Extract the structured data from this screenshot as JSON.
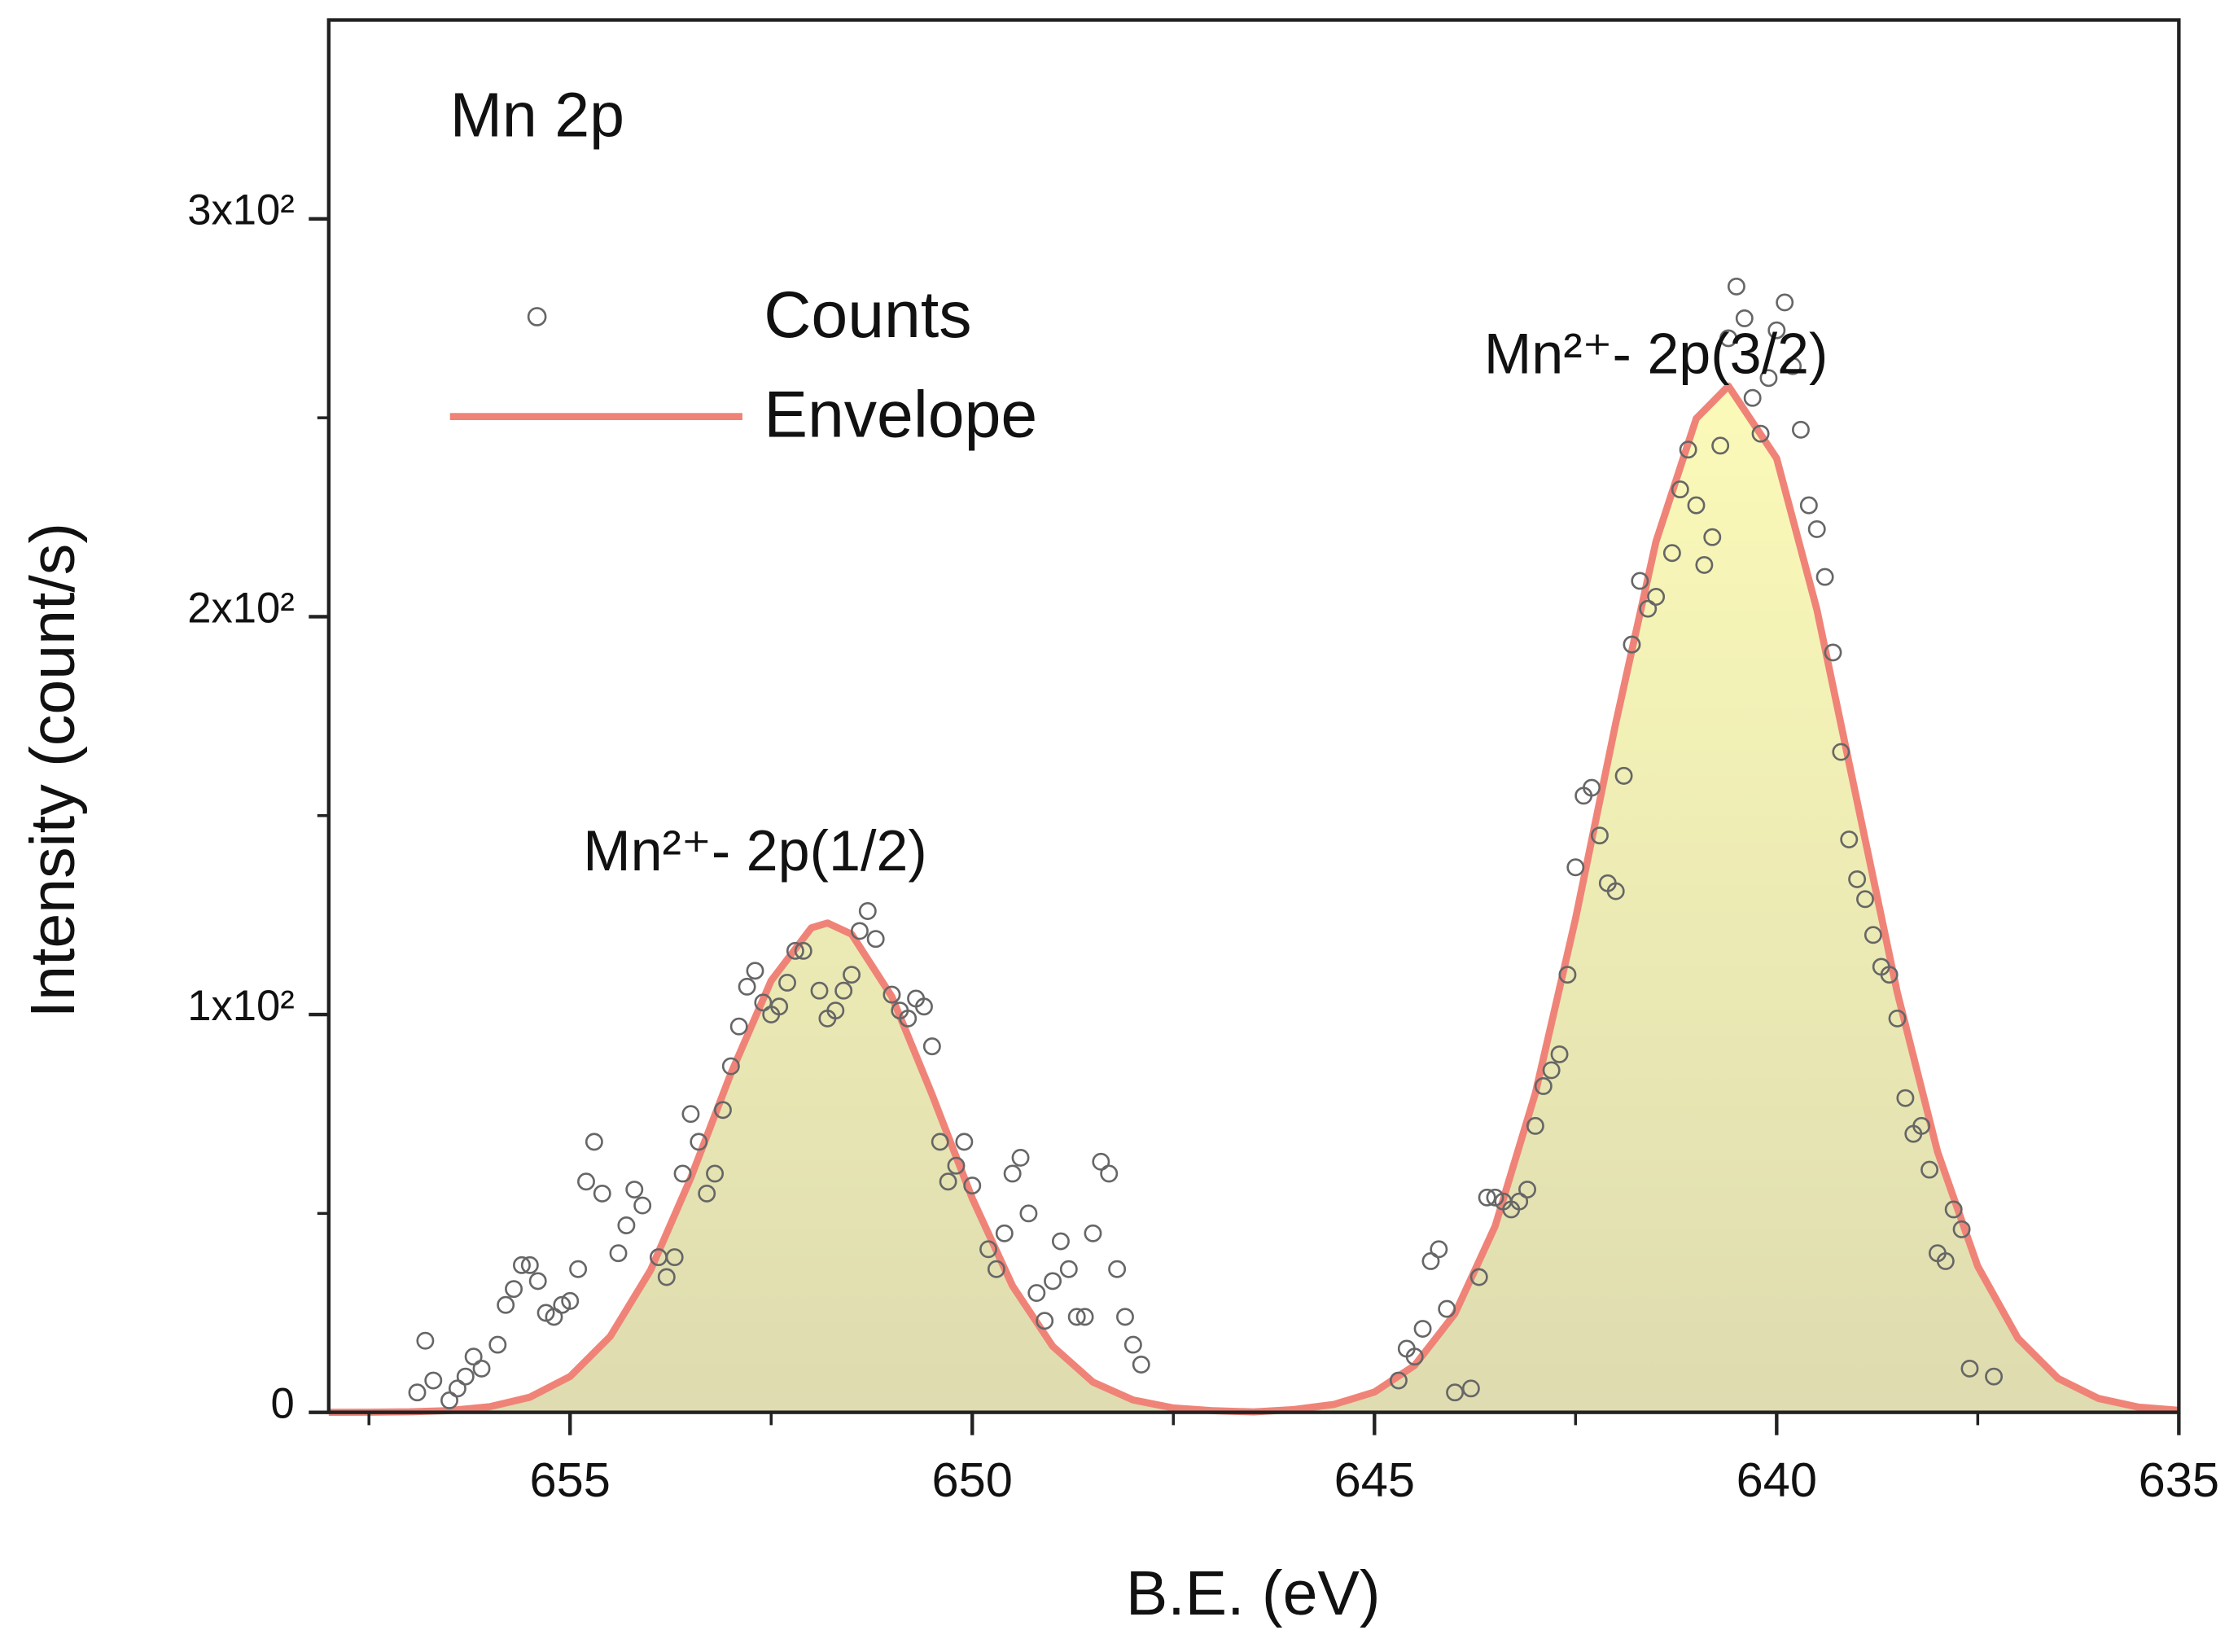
{
  "chart_data": {
    "type": "scatter",
    "title": "Mn 2p",
    "xlabel": "B.E. (eV)",
    "ylabel": "Intensity (count/s)",
    "xlim": [
      658,
      635
    ],
    "xticks": [
      655,
      650,
      645,
      640,
      635
    ],
    "ylim": [
      0,
      350
    ],
    "yticks": [
      0,
      {
        "value": 100,
        "label": "1x10²"
      },
      {
        "value": 200,
        "label": "2x10²"
      },
      {
        "value": 300,
        "label": "3x10²"
      }
    ],
    "legend": "upper left",
    "annotations": [
      {
        "text": "Mn²⁺- 2p(1/2)",
        "x": 652.7,
        "y": 140
      },
      {
        "text": "Mn²⁺- 2p(3/2)",
        "x": 641.5,
        "y": 265
      }
    ],
    "series": [
      {
        "name": "Counts",
        "type": "scatter",
        "color": "#666666",
        "x": [
          656.9,
          656.8,
          656.7,
          656.5,
          656.4,
          656.3,
          656.2,
          656.1,
          655.9,
          655.8,
          655.7,
          655.6,
          655.5,
          655.4,
          655.3,
          655.2,
          655.1,
          655.0,
          654.9,
          654.8,
          654.7,
          654.6,
          654.4,
          654.3,
          654.2,
          654.1,
          653.9,
          653.8,
          653.7,
          653.6,
          653.5,
          653.4,
          653.3,
          653.2,
          653.1,
          653.0,
          652.9,
          652.8,
          652.7,
          652.6,
          652.5,
          652.4,
          652.3,
          652.2,
          652.1,
          651.9,
          651.8,
          651.7,
          651.6,
          651.5,
          651.4,
          651.3,
          651.2,
          651.0,
          650.9,
          650.8,
          650.7,
          650.6,
          650.5,
          650.4,
          650.3,
          650.2,
          650.1,
          650.0,
          649.8,
          649.7,
          649.6,
          649.5,
          649.4,
          649.3,
          649.2,
          649.1,
          649.0,
          648.9,
          648.8,
          648.7,
          648.6,
          648.5,
          648.4,
          648.3,
          648.2,
          648.1,
          648.0,
          647.9,
          644.7,
          644.6,
          644.5,
          644.4,
          644.3,
          644.2,
          644.1,
          644.0,
          643.8,
          643.7,
          643.6,
          643.5,
          643.4,
          643.3,
          643.2,
          643.1,
          643.0,
          642.9,
          642.8,
          642.7,
          642.6,
          642.5,
          642.4,
          642.3,
          642.2,
          642.1,
          642.0,
          641.9,
          641.8,
          641.7,
          641.6,
          641.5,
          641.3,
          641.2,
          641.1,
          641.0,
          640.9,
          640.8,
          640.7,
          640.6,
          640.5,
          640.4,
          640.3,
          640.2,
          640.1,
          640.0,
          639.9,
          639.8,
          639.7,
          639.6,
          639.5,
          639.4,
          639.3,
          639.2,
          639.1,
          639.0,
          638.9,
          638.8,
          638.7,
          638.6,
          638.5,
          638.4,
          638.3,
          638.2,
          638.1,
          638.0,
          637.9,
          637.8,
          637.7,
          637.6,
          637.3
        ],
        "values": [
          5,
          18,
          8,
          3,
          6,
          9,
          14,
          11,
          17,
          27,
          31,
          37,
          37,
          33,
          25,
          24,
          27,
          28,
          36,
          58,
          68,
          55,
          40,
          47,
          56,
          52,
          39,
          34,
          39,
          60,
          75,
          68,
          55,
          60,
          76,
          87,
          97,
          107,
          111,
          103,
          100,
          102,
          108,
          116,
          116,
          106,
          99,
          101,
          106,
          110,
          121,
          126,
          119,
          105,
          101,
          99,
          104,
          102,
          92,
          68,
          58,
          62,
          68,
          57,
          41,
          36,
          45,
          60,
          64,
          50,
          30,
          23,
          33,
          43,
          36,
          24,
          24,
          45,
          63,
          60,
          36,
          24,
          17,
          12,
          8,
          16,
          14,
          21,
          38,
          41,
          26,
          5,
          6,
          34,
          54,
          54,
          53,
          51,
          53,
          56,
          72,
          82,
          86,
          90,
          110,
          137,
          155,
          157,
          145,
          133,
          131,
          160,
          193,
          209,
          202,
          205,
          216,
          232,
          242,
          228,
          213,
          220,
          243,
          270,
          283,
          275,
          255,
          246,
          260,
          272,
          279,
          263,
          247,
          228,
          222,
          210,
          191,
          166,
          144,
          134,
          129,
          120,
          112,
          110,
          99,
          79,
          70,
          72,
          61,
          40,
          38,
          51,
          46,
          11,
          9
        ]
      },
      {
        "name": "Envelope",
        "type": "line",
        "color": "#f08378",
        "fill": "#f6f4b4",
        "x": [
          658,
          657.5,
          657,
          656.5,
          656,
          655.5,
          655,
          654.5,
          654,
          653.5,
          653,
          652.5,
          652,
          651.8,
          651.5,
          651,
          650.5,
          650,
          649.5,
          649,
          648.5,
          648,
          647.5,
          647,
          646.5,
          646,
          645.5,
          645,
          644.5,
          644,
          643.5,
          643,
          642.5,
          642,
          641.5,
          641,
          640.6,
          640,
          639.5,
          639,
          638.5,
          638,
          637.5,
          637,
          636.5,
          636,
          635.5,
          635
        ],
        "values": [
          0,
          0.03,
          0.12,
          0.44,
          1.4,
          3.8,
          9.0,
          19.1,
          35.7,
          58.9,
          85.2,
          108.5,
          121.8,
          123,
          120.2,
          104.5,
          79.9,
          53.8,
          31.8,
          16.6,
          7.6,
          3.1,
          1.1,
          0.4,
          0.1,
          0.7,
          2.0,
          5.1,
          11.8,
          24.8,
          46.8,
          80.2,
          124.1,
          173.3,
          218.9,
          249.8,
          258,
          239.8,
          201.8,
          153.6,
          105.5,
          65.5,
          36.7,
          18.6,
          8.5,
          3.5,
          1.3,
          0.5
        ]
      }
    ]
  }
}
